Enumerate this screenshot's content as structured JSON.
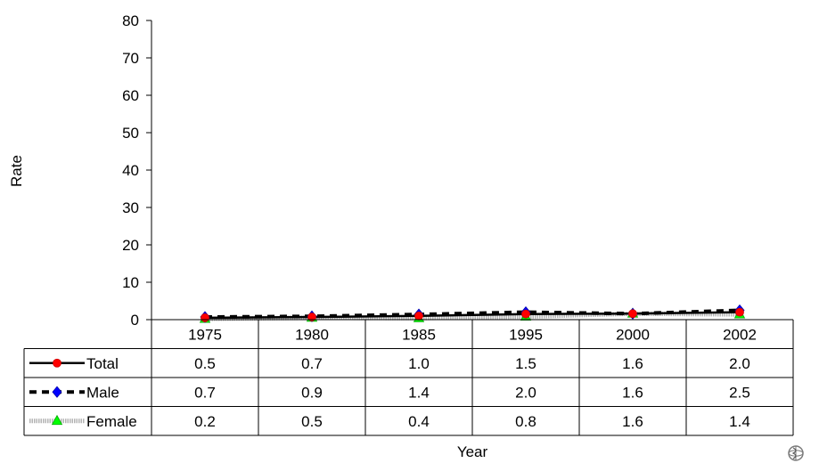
{
  "chart_data": {
    "type": "line",
    "title": "",
    "xlabel": "Year",
    "ylabel": "Rate",
    "categories": [
      "1975",
      "1980",
      "1985",
      "1995",
      "2000",
      "2002"
    ],
    "ylim": [
      0,
      80
    ],
    "yticks": [
      0,
      10,
      20,
      30,
      40,
      50,
      60,
      70,
      80
    ],
    "grid": false,
    "legend_placement": "data-table-left",
    "series": [
      {
        "name": "Total",
        "values": [
          0.5,
          0.7,
          1.0,
          1.5,
          1.6,
          2.0
        ],
        "labels": [
          "0.5",
          "0.7",
          "1.0",
          "1.5",
          "1.6",
          "2.0"
        ],
        "color": "#000000",
        "marker": "circle",
        "marker_color": "#ff0000",
        "line_style": "solid"
      },
      {
        "name": "Male",
        "values": [
          0.7,
          0.9,
          1.4,
          2.0,
          1.6,
          2.5
        ],
        "labels": [
          "0.7",
          "0.9",
          "1.4",
          "2.0",
          "1.6",
          "2.5"
        ],
        "color": "#000000",
        "marker": "diamond",
        "marker_color": "#0000ff",
        "line_style": "dashed"
      },
      {
        "name": "Female",
        "values": [
          0.2,
          0.5,
          0.4,
          0.8,
          1.6,
          1.4
        ],
        "labels": [
          "0.2",
          "0.5",
          "0.4",
          "0.8",
          "1.6",
          "1.4"
        ],
        "color": "#b3b3b3",
        "marker": "triangle",
        "marker_color": "#00ff00",
        "line_style": "dotted-thick"
      }
    ]
  },
  "logo": {
    "icon": "who-emblem-icon"
  }
}
